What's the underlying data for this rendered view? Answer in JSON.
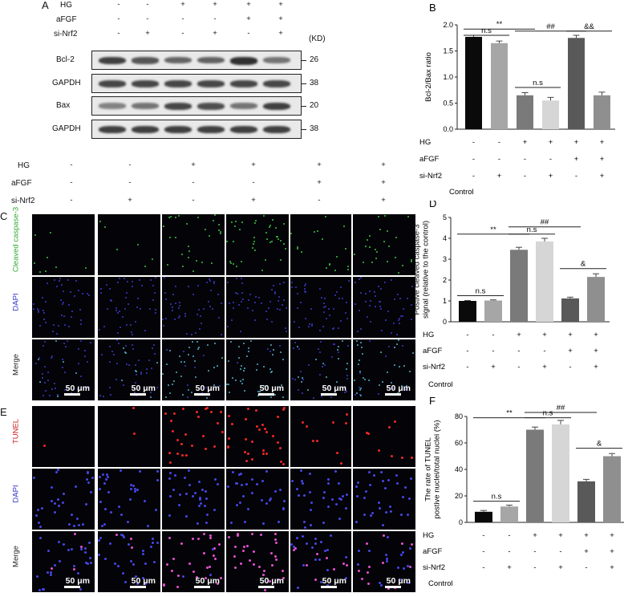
{
  "panelA": {
    "label": "A",
    "conditions": [
      {
        "name": "HG",
        "signs": [
          "-",
          "-",
          "+",
          "+",
          "+",
          "+"
        ]
      },
      {
        "name": "aFGF",
        "signs": [
          "-",
          "-",
          "-",
          "-",
          "+",
          "+"
        ]
      },
      {
        "name": "si-Nrf2",
        "signs": [
          "-",
          "+",
          "-",
          "+",
          "-",
          "+"
        ]
      }
    ],
    "unit_label": "(KD)",
    "blots": [
      {
        "protein": "Bcl-2",
        "kd": "26",
        "intensity": [
          0.85,
          0.7,
          0.6,
          0.62,
          0.95,
          0.5
        ]
      },
      {
        "protein": "GAPDH",
        "kd": "38",
        "intensity": [
          0.8,
          0.8,
          0.8,
          0.8,
          0.8,
          0.8
        ]
      },
      {
        "protein": "Bax",
        "kd": "20",
        "intensity": [
          0.4,
          0.5,
          0.8,
          0.75,
          0.5,
          0.85
        ]
      },
      {
        "protein": "GAPDH",
        "kd": "38",
        "intensity": [
          0.85,
          0.85,
          0.85,
          0.85,
          0.85,
          0.85
        ]
      }
    ]
  },
  "panelC": {
    "label": "C",
    "conditions": [
      {
        "name": "HG",
        "signs": [
          "-",
          "-",
          "+",
          "+",
          "+",
          "+"
        ]
      },
      {
        "name": "aFGF",
        "signs": [
          "-",
          "-",
          "-",
          "-",
          "+",
          "+"
        ]
      },
      {
        "name": "si-Nrf2",
        "signs": [
          "-",
          "+",
          "-",
          "+",
          "-",
          "+"
        ]
      }
    ],
    "rows": [
      "Cleaved caspase-3",
      "DAPI",
      "Merge"
    ],
    "row_colors": [
      "#2ea82e",
      "#3333cc",
      "#222222"
    ],
    "scale_bar": "50 μm"
  },
  "panelE": {
    "label": "E",
    "rows": [
      "TUNEL",
      "DAPI",
      "Merge"
    ],
    "row_colors": [
      "#cc2222",
      "#3333cc",
      "#222222"
    ],
    "scale_bar": "50 μm"
  },
  "charts": {
    "conditions": [
      {
        "name": "HG",
        "signs": [
          "-",
          "-",
          "+",
          "+",
          "+",
          "+"
        ]
      },
      {
        "name": "aFGF",
        "signs": [
          "-",
          "-",
          "-",
          "-",
          "+",
          "+"
        ]
      },
      {
        "name": "si-Nrf2",
        "signs": [
          "-",
          "+",
          "-",
          "+",
          "-",
          "+"
        ]
      }
    ],
    "control_label": "Control",
    "bar_colors": [
      "#0a0a0a",
      "#a6a6a6",
      "#7a7a7a",
      "#d6d6d6",
      "#595959",
      "#8f8f8f"
    ]
  },
  "chart_data": [
    {
      "panel": "B",
      "type": "bar",
      "ylabel": "Bcl-2/Bax ratio",
      "ylim": [
        0,
        2.0
      ],
      "yticks": [
        "0.0",
        "0.5",
        "1.0",
        "1.5",
        "2.0"
      ],
      "values": [
        1.77,
        1.65,
        0.65,
        0.55,
        1.75,
        0.65
      ],
      "errors": [
        0.03,
        0.04,
        0.05,
        0.06,
        0.05,
        0.06
      ],
      "annotations": [
        {
          "text": "**",
          "from": 0,
          "to": 2,
          "y": 1.92
        },
        {
          "text": "n.s",
          "from": 0,
          "to": 1,
          "y": 1.8
        },
        {
          "text": "n.s",
          "from": 2,
          "to": 3,
          "y": 0.8
        },
        {
          "text": "##",
          "from": 2,
          "to": 4,
          "y": 1.88
        },
        {
          "text": "&&",
          "from": 4,
          "to": 5,
          "y": 1.88
        }
      ]
    },
    {
      "panel": "D",
      "type": "bar",
      "ylabel": "Postive cleaved caspase-3 signal (relative to the control)",
      "ylim": [
        0,
        5
      ],
      "yticks": [
        "0",
        "1",
        "2",
        "3",
        "4",
        "5"
      ],
      "values": [
        1.0,
        1.02,
        3.45,
        3.85,
        1.12,
        2.15
      ],
      "errors": [
        0.02,
        0.03,
        0.12,
        0.15,
        0.06,
        0.15
      ],
      "annotations": [
        {
          "text": "**",
          "from": 0,
          "to": 2,
          "y": 4.2
        },
        {
          "text": "n.s",
          "from": 0,
          "to": 1,
          "y": 1.25
        },
        {
          "text": "n.s",
          "from": 2,
          "to": 3,
          "y": 4.2
        },
        {
          "text": "##",
          "from": 2,
          "to": 4,
          "y": 4.55
        },
        {
          "text": "&",
          "from": 4,
          "to": 5,
          "y": 2.55
        }
      ]
    },
    {
      "panel": "F",
      "type": "bar",
      "ylabel": "The rate of TUNEL postive nuclei/total nuclei (%)",
      "ylim": [
        0,
        80
      ],
      "yticks": [
        "0",
        "20",
        "40",
        "60",
        "80"
      ],
      "values": [
        8,
        12,
        70,
        74,
        31,
        50
      ],
      "errors": [
        1.0,
        1.0,
        2.0,
        3.0,
        1.5,
        2.0
      ],
      "annotations": [
        {
          "text": "**",
          "from": 0,
          "to": 2,
          "y": 79
        },
        {
          "text": "n.s",
          "from": 0,
          "to": 1,
          "y": 16
        },
        {
          "text": "n.s",
          "from": 2,
          "to": 3,
          "y": 79
        },
        {
          "text": "##",
          "from": 2,
          "to": 4,
          "y": 83
        },
        {
          "text": "&",
          "from": 4,
          "to": 5,
          "y": 56
        }
      ]
    }
  ]
}
